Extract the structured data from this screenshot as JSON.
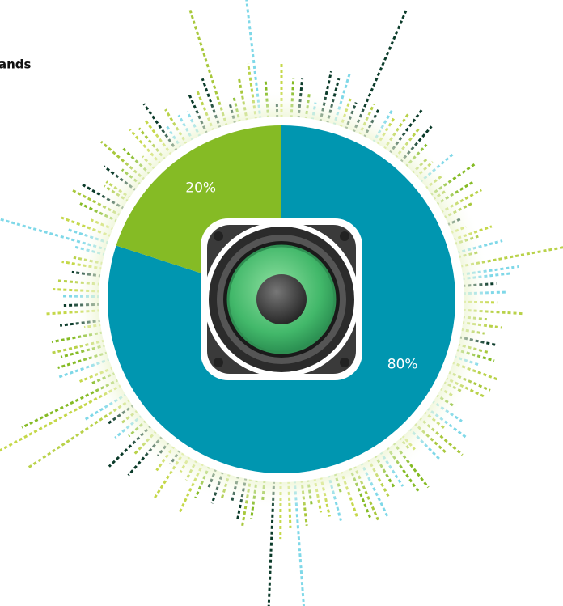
{
  "chart_data": {
    "type": "pie",
    "title": "ands",
    "values": [
      80,
      20
    ],
    "value_labels": [
      "80%",
      "20%"
    ],
    "colors": [
      "#0096b0",
      "#85bb25"
    ]
  }
}
